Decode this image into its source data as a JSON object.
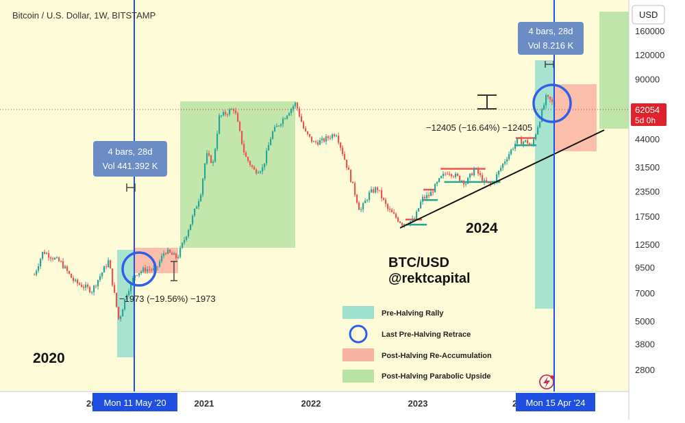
{
  "header": {
    "symbol_title": "Bitcoin / U.S. Dollar, 1W, BITSTAMP",
    "currency_button": "USD"
  },
  "colors": {
    "background": "#fdfbd8",
    "pre_halving_rally": "#9fe0cf",
    "post_halving_reaccumulation": "#f9b3a3",
    "post_halving_parabolic": "#b9e2a5",
    "retrace_circle": "#2f5fe6",
    "halving_line": "#1f4fe0",
    "callout": "#6b8cc4",
    "price_badge": "#e0222c",
    "candle_up": "#26a69a",
    "candle_down": "#ef5350"
  },
  "chart_data": {
    "type": "candlestick",
    "title": "Bitcoin / U.S. Dollar, 1W, BITSTAMP",
    "y_scale": "log",
    "ylim": [
      2300,
      210000
    ],
    "y_ticks": [
      2800,
      3800,
      5000,
      7000,
      9500,
      12500,
      17500,
      23500,
      31500,
      44000,
      62054,
      90000,
      120000,
      160000
    ],
    "y_tick_labels": [
      "2800",
      "3800",
      "5000",
      "7000",
      "9500",
      "12500",
      "17500",
      "23500",
      "31500",
      "44000",
      "62054",
      "90000",
      "120000",
      "160000"
    ],
    "x_tick_labels": [
      "2021",
      "2022",
      "2023"
    ],
    "current_price": "62054",
    "current_price_sub": "5d 0h",
    "trend_series": {
      "x": [
        "2019-06-01",
        "2019-07-01",
        "2019-09-01",
        "2019-10-15",
        "2019-12-15",
        "2020-02-10",
        "2020-03-16",
        "2020-04-10",
        "2020-05-11",
        "2020-06-15",
        "2020-07-20",
        "2020-08-20",
        "2020-10-01",
        "2020-11-15",
        "2020-12-20",
        "2021-01-08",
        "2021-02-01",
        "2021-02-21",
        "2021-04-14",
        "2021-05-20",
        "2021-06-22",
        "2021-07-20",
        "2021-08-20",
        "2021-09-07",
        "2021-10-20",
        "2021-11-10",
        "2021-12-10",
        "2022-01-10",
        "2022-02-10",
        "2022-03-28",
        "2022-05-12",
        "2022-06-18",
        "2022-07-20",
        "2022-08-15",
        "2022-09-20",
        "2022-11-09",
        "2022-12-20",
        "2023-01-15",
        "2023-02-10",
        "2023-03-20",
        "2023-04-14",
        "2023-06-15",
        "2023-07-14",
        "2023-08-17",
        "2023-09-11",
        "2023-10-25",
        "2023-12-05",
        "2024-01-10",
        "2024-01-23",
        "2024-02-15",
        "2024-03-14",
        "2024-04-01",
        "2024-04-17"
      ],
      "y": [
        8700,
        11500,
        10000,
        8000,
        7200,
        10300,
        5000,
        6900,
        8800,
        9300,
        9200,
        11600,
        10600,
        16000,
        23000,
        36500,
        33000,
        57000,
        63500,
        36000,
        30000,
        31000,
        47000,
        51000,
        62000,
        67500,
        48000,
        42000,
        43000,
        47500,
        29000,
        18500,
        23000,
        24500,
        19000,
        16000,
        16700,
        21500,
        22500,
        27500,
        30000,
        26000,
        31000,
        26000,
        25500,
        34000,
        43000,
        42500,
        39500,
        51500,
        72000,
        69000,
        62000
      ]
    },
    "halving_lines": [
      "Mon 11 May '20",
      "Mon 15 Apr '24"
    ],
    "callouts": [
      {
        "line1": "4 bars, 28d",
        "line2": "Vol 441.392 K"
      },
      {
        "line1": "4 bars, 28d",
        "line2": "Vol 8.216 K"
      }
    ],
    "measure_labels": [
      "−1973 (−19.56%) −1973",
      "−12405 (−16.64%) −12405"
    ],
    "year_labels": [
      "2020",
      "2024"
    ],
    "watermark": {
      "line1": "BTC/USD",
      "line2": "@rektcapital"
    },
    "legend": [
      {
        "label": "Pre-Halving Rally",
        "kind": "box",
        "color": "#9fe0cf"
      },
      {
        "label": "Last Pre-Halving Retrace",
        "kind": "circle",
        "color": "#2f5fe6"
      },
      {
        "label": "Post-Halving Re-Accumulation",
        "kind": "box",
        "color": "#f9b3a3"
      },
      {
        "label": "Post-Halving Parabolic Upside",
        "kind": "box",
        "color": "#b9e2a5"
      }
    ],
    "legend_position": "bottom-right",
    "grid": false
  }
}
